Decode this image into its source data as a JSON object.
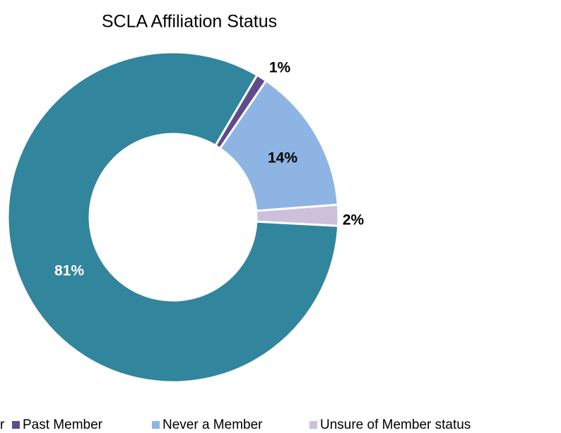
{
  "chart_data": {
    "type": "donut",
    "title": "SCLA Affiliation Status",
    "categories": [
      "r",
      "Past Member",
      "Never a Member",
      "Unsure of Member status"
    ],
    "values": [
      81,
      1,
      14,
      2
    ],
    "value_labels": [
      "81%",
      "1%",
      "14%",
      "2%"
    ],
    "colors": [
      "#31859c",
      "#5f4b8b",
      "#8eb4e3",
      "#ccc0da"
    ]
  }
}
